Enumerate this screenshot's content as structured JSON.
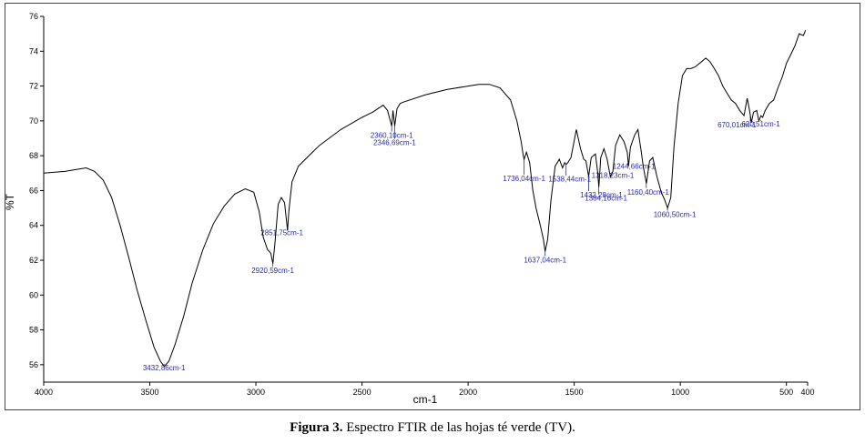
{
  "chart_data": {
    "type": "line",
    "title": "",
    "xlabel": "cm-1",
    "ylabel": "%T",
    "xlim": [
      4000,
      400
    ],
    "ylim": [
      55,
      76
    ],
    "x_ticks": [
      4000,
      3500,
      3000,
      2500,
      2000,
      1500,
      1000,
      500,
      400
    ],
    "y_ticks": [
      56,
      58,
      60,
      62,
      64,
      66,
      68,
      70,
      72,
      74,
      76
    ],
    "grid": false,
    "colors": {
      "line": "#000000",
      "annotation": "#2a2aa8"
    },
    "series": [
      {
        "x": [
          4000,
          3900,
          3800,
          3760,
          3720,
          3680,
          3640,
          3600,
          3560,
          3520,
          3480,
          3450,
          3432,
          3410,
          3380,
          3340,
          3300,
          3250,
          3200,
          3150,
          3100,
          3050,
          3010,
          2985,
          2965,
          2945,
          2930,
          2920,
          2910,
          2895,
          2880,
          2865,
          2855,
          2851,
          2845,
          2830,
          2800,
          2750,
          2700,
          2600,
          2500,
          2450,
          2400,
          2380,
          2360,
          2354,
          2346,
          2335,
          2320,
          2300,
          2200,
          2100,
          2000,
          1950,
          1900,
          1850,
          1800,
          1770,
          1750,
          1740,
          1736,
          1725,
          1710,
          1695,
          1680,
          1660,
          1645,
          1637,
          1625,
          1610,
          1590,
          1570,
          1555,
          1545,
          1538,
          1530,
          1515,
          1490,
          1470,
          1455,
          1445,
          1432,
          1420,
          1400,
          1390,
          1384,
          1375,
          1360,
          1345,
          1330,
          1318,
          1305,
          1285,
          1265,
          1250,
          1244,
          1235,
          1215,
          1200,
          1185,
          1175,
          1160,
          1145,
          1130,
          1110,
          1090,
          1075,
          1060,
          1045,
          1030,
          1010,
          990,
          970,
          950,
          930,
          900,
          880,
          860,
          840,
          820,
          800,
          780,
          760,
          740,
          720,
          700,
          685,
          675,
          670,
          665,
          655,
          640,
          630,
          620,
          612,
          600,
          580,
          560,
          540,
          520,
          500,
          480,
          460,
          440,
          420,
          410
        ],
        "y": [
          67.0,
          67.1,
          67.3,
          67.1,
          66.6,
          65.6,
          64.0,
          62.2,
          60.3,
          58.6,
          57.0,
          56.2,
          55.9,
          56.2,
          57.2,
          58.8,
          60.7,
          62.6,
          64.1,
          65.1,
          65.8,
          66.1,
          65.9,
          64.8,
          63.3,
          62.6,
          62.4,
          61.8,
          63.0,
          65.2,
          65.6,
          65.3,
          64.2,
          63.7,
          64.8,
          66.5,
          67.4,
          68.0,
          68.6,
          69.5,
          70.2,
          70.5,
          70.9,
          70.6,
          69.7,
          70.6,
          69.7,
          70.7,
          71.0,
          71.1,
          71.5,
          71.8,
          72.0,
          72.1,
          72.1,
          71.9,
          71.2,
          70.0,
          68.8,
          68.0,
          67.8,
          68.2,
          67.6,
          66.0,
          65.0,
          64.0,
          63.2,
          62.5,
          63.2,
          65.4,
          67.4,
          67.8,
          67.3,
          67.6,
          67.5,
          67.6,
          67.9,
          69.5,
          68.4,
          67.8,
          67.7,
          66.8,
          67.9,
          68.1,
          67.1,
          66.2,
          67.9,
          68.4,
          67.8,
          66.8,
          67.1,
          68.6,
          69.2,
          68.8,
          68.2,
          67.4,
          68.5,
          69.2,
          69.5,
          68.3,
          67.4,
          66.4,
          67.7,
          67.9,
          66.8,
          65.9,
          65.5,
          65.0,
          65.6,
          68.5,
          71.0,
          72.6,
          73.0,
          73.0,
          73.1,
          73.4,
          73.6,
          73.4,
          73.0,
          72.6,
          72.0,
          71.6,
          71.2,
          71.0,
          70.6,
          70.3,
          71.3,
          70.7,
          70.3,
          69.9,
          70.5,
          70.6,
          70.0,
          70.3,
          70.2,
          70.6,
          71.0,
          71.2,
          71.9,
          72.5,
          73.3,
          73.8,
          74.3,
          75.0,
          74.9,
          75.2
        ]
      }
    ],
    "peak_labels": [
      {
        "label": "3432,86cm-1",
        "x": 3432.86,
        "y": 55.9
      },
      {
        "label": "2920,59cm-1",
        "x": 2920.59,
        "y": 61.8
      },
      {
        "label": "2851,75cm-1",
        "x": 2851.75,
        "y": 63.7
      },
      {
        "label": "2360,10cm-1",
        "x": 2360.1,
        "y": 69.7
      },
      {
        "label": "2346,69cm-1",
        "x": 2346.69,
        "y": 69.7
      },
      {
        "label": "1736,04cm-1",
        "x": 1736.04,
        "y": 67.8
      },
      {
        "label": "1637,04cm-1",
        "x": 1637.04,
        "y": 62.5
      },
      {
        "label": "1538,44cm-1",
        "x": 1538.44,
        "y": 67.5
      },
      {
        "label": "1432,28cm-1",
        "x": 1432.28,
        "y": 66.8
      },
      {
        "label": "1384,16cm-1",
        "x": 1384.16,
        "y": 66.2
      },
      {
        "label": "1318,23cm-1",
        "x": 1318.23,
        "y": 67.1
      },
      {
        "label": "1244,66cm-1",
        "x": 1244.66,
        "y": 67.4
      },
      {
        "label": "1160,40cm-1",
        "x": 1160.4,
        "y": 66.4
      },
      {
        "label": "1060,50cm-1",
        "x": 1060.5,
        "y": 65.0
      },
      {
        "label": "670,01cm-1",
        "x": 670.01,
        "y": 70.3
      },
      {
        "label": "620,51cm-1",
        "x": 620.51,
        "y": 70.0
      }
    ]
  },
  "caption": {
    "label": "Figura 3.",
    "text": " Espectro FTIR de las hojas té verde (TV)."
  }
}
